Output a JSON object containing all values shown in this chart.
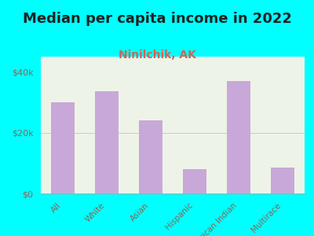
{
  "title": "Median per capita income in 2022",
  "subtitle": "Ninilchik, AK",
  "categories": [
    "All",
    "White",
    "Asian",
    "Hispanic",
    "American Indian",
    "Multirace"
  ],
  "values": [
    30000,
    33500,
    24000,
    8000,
    37000,
    8500
  ],
  "bar_color": "#c8a8d8",
  "background_color": "#00FFFF",
  "plot_bg_color": "#eef3e8",
  "title_fontsize": 13,
  "title_color": "#222222",
  "subtitle_fontsize": 10,
  "subtitle_color": "#cc6655",
  "tick_label_color": "#886655",
  "ylim": [
    0,
    45000
  ],
  "yticks": [
    0,
    20000,
    40000
  ],
  "ytick_labels": [
    "$0",
    "$20k",
    "$40k"
  ]
}
